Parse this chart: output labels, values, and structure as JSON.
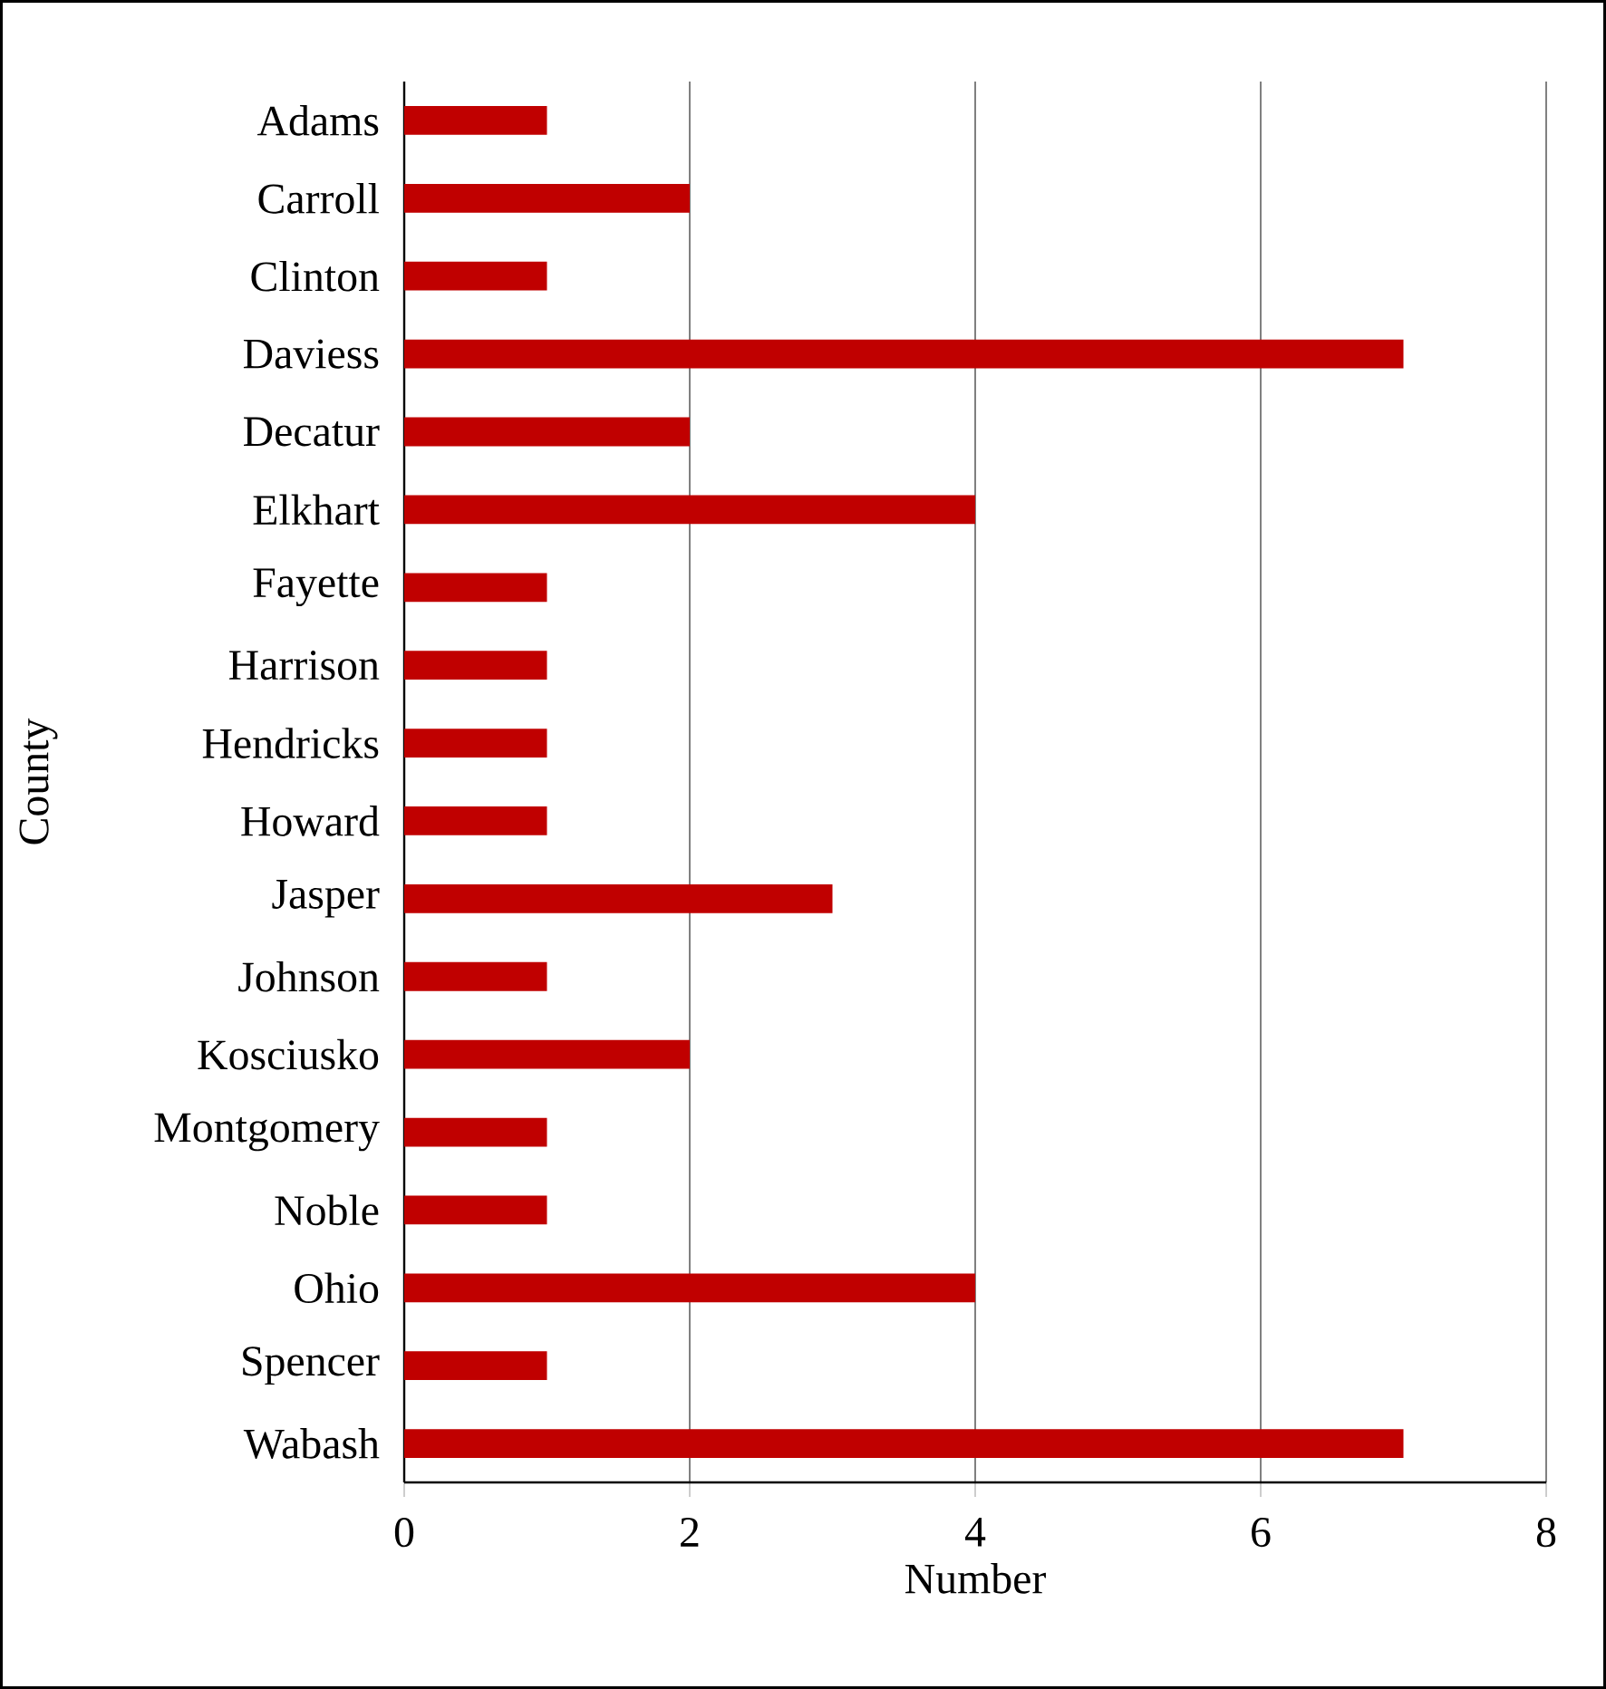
{
  "chart_data": {
    "type": "bar",
    "orientation": "horizontal",
    "xlabel": "Number",
    "ylabel": "County",
    "categories": [
      "Adams",
      "Carroll",
      "Clinton",
      "Daviess",
      "Decatur",
      "Elkhart",
      "Fayette",
      "Harrison",
      "Hendricks",
      "Howard",
      "Jasper",
      "Johnson",
      "Kosciusko",
      "Montgomery",
      "Noble",
      "Ohio",
      "Spencer",
      "Wabash"
    ],
    "values": [
      1,
      2,
      1,
      7,
      2,
      4,
      1,
      1,
      1,
      1,
      3,
      1,
      2,
      1,
      1,
      4,
      1,
      7
    ],
    "color": "#c00000",
    "xlim": [
      0,
      8
    ],
    "xticks": [
      0,
      2,
      4,
      6,
      8
    ],
    "grid": "x"
  }
}
